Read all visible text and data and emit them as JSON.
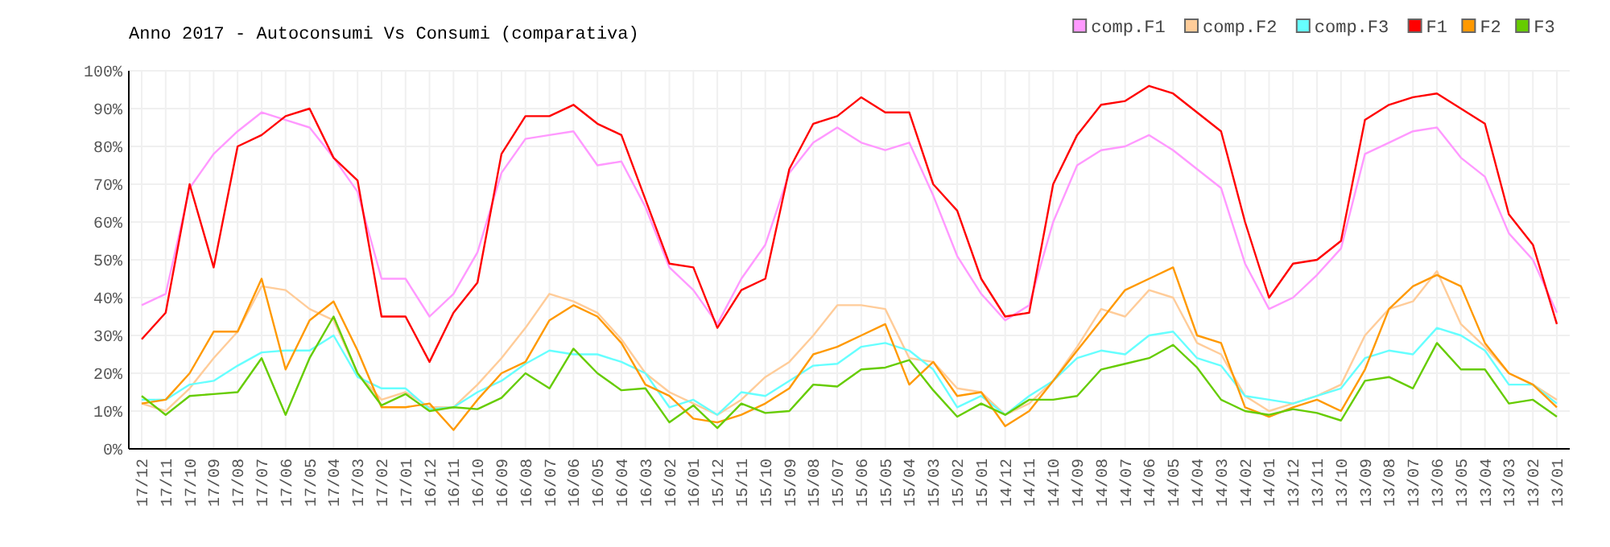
{
  "chart_data": {
    "type": "line",
    "title": "Anno 2017 - Autoconsumi Vs Consumi (comparativa)",
    "categories": [
      "17/12",
      "17/11",
      "17/10",
      "17/09",
      "17/08",
      "17/07",
      "17/06",
      "17/05",
      "17/04",
      "17/03",
      "17/02",
      "17/01",
      "16/12",
      "16/11",
      "16/10",
      "16/09",
      "16/08",
      "16/07",
      "16/06",
      "16/05",
      "16/04",
      "16/03",
      "16/02",
      "16/01",
      "15/12",
      "15/11",
      "15/10",
      "15/09",
      "15/08",
      "15/07",
      "15/06",
      "15/05",
      "15/04",
      "15/03",
      "15/02",
      "15/01",
      "14/12",
      "14/11",
      "14/10",
      "14/09",
      "14/08",
      "14/07",
      "14/06",
      "14/05",
      "14/04",
      "14/03",
      "14/02",
      "14/01",
      "13/12",
      "13/11",
      "13/10",
      "13/09",
      "13/08",
      "13/07",
      "13/06",
      "13/05",
      "13/04",
      "13/03",
      "13/02",
      "13/01"
    ],
    "series": [
      {
        "name": "comp.F1",
        "color": "#ff99ff",
        "values": [
          38,
          41,
          69,
          78,
          84,
          89,
          87,
          85,
          77,
          68,
          45,
          45,
          35,
          41,
          52,
          73,
          82,
          83,
          84,
          75,
          76,
          64,
          48,
          42,
          33,
          45,
          54,
          73,
          81,
          85,
          81,
          79,
          81,
          67,
          51,
          41,
          34,
          38,
          60,
          75,
          79,
          80,
          83,
          79,
          74,
          69,
          49,
          37,
          40,
          46,
          53,
          78,
          81,
          84,
          85,
          77,
          72,
          57,
          50,
          36
        ]
      },
      {
        "name": "comp.F2",
        "color": "#ffcc99",
        "values": [
          12,
          10,
          16,
          24,
          31,
          43,
          42,
          37,
          34,
          20,
          13,
          15,
          11,
          11,
          17,
          24,
          32,
          41,
          39,
          36,
          29,
          20,
          15,
          12,
          9,
          13,
          19,
          23,
          30,
          38,
          38,
          37,
          24,
          23,
          16,
          15,
          9,
          12,
          18,
          27,
          37,
          35,
          42,
          40,
          28,
          25,
          14,
          10,
          12,
          14,
          17,
          30,
          37,
          39,
          47,
          33,
          27,
          20,
          17,
          13
        ]
      },
      {
        "name": "comp.F3",
        "color": "#66ffff",
        "values": [
          13,
          13,
          17,
          18,
          22,
          25.5,
          26,
          26,
          30,
          19,
          16,
          16,
          10.5,
          11,
          15,
          18,
          22.5,
          26,
          25,
          25,
          23,
          20,
          11,
          13,
          9,
          15,
          14,
          18,
          22,
          22.5,
          27,
          28,
          26,
          21,
          11,
          14,
          9,
          14,
          18,
          24,
          26,
          25,
          30,
          31,
          24,
          22,
          14,
          13,
          12,
          14,
          16,
          24,
          26,
          25,
          32,
          30,
          26,
          17,
          17,
          12
        ]
      },
      {
        "name": "F1",
        "color": "#ff0000",
        "values": [
          29,
          36,
          70,
          48,
          80,
          83,
          88,
          90,
          77,
          71,
          35,
          35,
          23,
          36,
          44,
          78,
          88,
          88,
          91,
          86,
          83,
          66,
          49,
          48,
          32,
          42,
          45,
          74,
          86,
          88,
          93,
          89,
          89,
          70,
          63,
          45,
          35,
          36,
          70,
          83,
          91,
          92,
          96,
          94,
          89,
          84,
          60,
          40,
          49,
          50,
          55,
          87,
          91,
          93,
          94,
          90,
          86,
          62,
          54,
          33
        ]
      },
      {
        "name": "F2",
        "color": "#ff9900",
        "values": [
          12,
          13,
          20,
          31,
          31,
          45,
          21,
          34,
          39,
          26,
          11,
          11,
          12,
          5,
          13,
          20,
          23,
          34,
          38,
          35,
          28,
          17,
          14,
          8,
          7,
          9,
          12,
          16,
          25,
          27,
          30,
          33,
          17,
          23,
          14,
          15,
          6,
          10,
          18,
          26,
          34,
          42,
          45,
          48,
          30,
          28,
          11,
          8.5,
          11,
          13,
          10,
          21,
          37,
          43,
          46,
          43,
          28,
          20,
          17,
          11
        ]
      },
      {
        "name": "F3",
        "color": "#66cc00",
        "values": [
          14,
          9,
          14,
          14.5,
          15,
          24,
          9,
          24,
          35,
          20,
          11.5,
          14.5,
          10,
          11,
          10.5,
          13.5,
          20,
          16,
          26.5,
          20,
          15.5,
          16,
          7,
          11.5,
          5.5,
          12,
          9.5,
          10,
          17,
          16.5,
          21,
          21.5,
          23.5,
          15.5,
          8.5,
          12,
          9,
          13,
          13,
          14,
          21,
          22.5,
          24,
          27.5,
          21.5,
          13,
          10,
          9,
          10.5,
          9.5,
          7.5,
          18,
          19,
          16,
          28,
          21,
          21,
          12,
          13,
          8.5
        ]
      }
    ],
    "ylim": [
      0,
      100
    ],
    "yticks": [
      {
        "value": 0,
        "label": "0%"
      },
      {
        "value": 10,
        "label": "10%"
      },
      {
        "value": 20,
        "label": "20%"
      },
      {
        "value": 30,
        "label": "30%"
      },
      {
        "value": 40,
        "label": "40%"
      },
      {
        "value": 50,
        "label": "50%"
      },
      {
        "value": 60,
        "label": "60%"
      },
      {
        "value": 70,
        "label": "70%"
      },
      {
        "value": 80,
        "label": "80%"
      },
      {
        "value": 90,
        "label": "90%"
      },
      {
        "value": 100,
        "label": "100%"
      }
    ],
    "grid": true,
    "legend": "top right",
    "marker": "none",
    "line_style": "solid"
  }
}
